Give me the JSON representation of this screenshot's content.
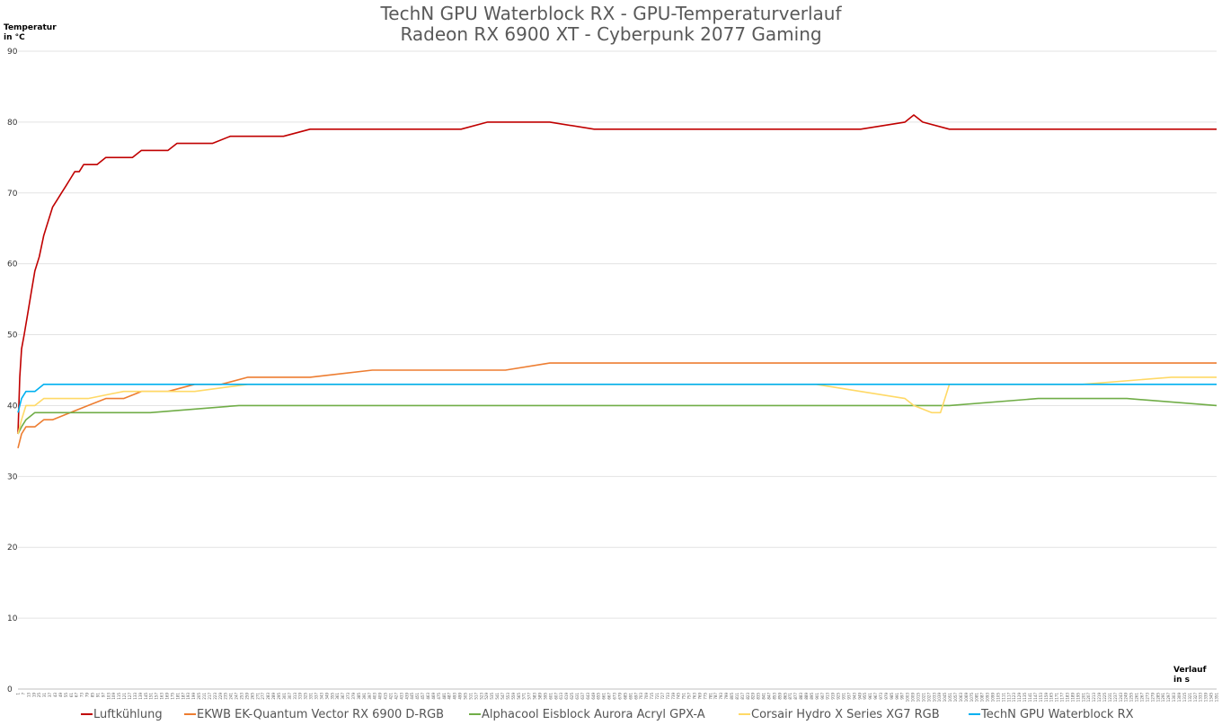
{
  "chart_data": {
    "type": "line",
    "title": [
      "TechN GPU Waterblock RX - GPU-Temperaturverlauf",
      "Radeon RX 6900 XT - Cyberpunk 2077 Gaming"
    ],
    "ylabel": [
      "Temperatur",
      "in °C"
    ],
    "xlabel": [
      "Verlauf",
      "in s"
    ],
    "ylim": [
      0,
      90
    ],
    "yticks": [
      0,
      10,
      20,
      30,
      40,
      50,
      60,
      70,
      80,
      90
    ],
    "xlim": [
      1,
      1351
    ],
    "x_tick_step": 6,
    "grid": true,
    "legend_position": "bottom",
    "series": [
      {
        "name": "Luftkühlung",
        "color": "#c00000",
        "x": [
          1,
          3,
          5,
          8,
          12,
          16,
          20,
          25,
          30,
          35,
          40,
          45,
          50,
          55,
          60,
          65,
          70,
          75,
          80,
          90,
          100,
          110,
          120,
          130,
          140,
          150,
          160,
          170,
          180,
          190,
          200,
          220,
          240,
          260,
          280,
          300,
          330,
          360,
          400,
          450,
          500,
          530,
          560,
          600,
          650,
          700,
          750,
          800,
          850,
          900,
          950,
          1000,
          1010,
          1020,
          1050,
          1100,
          1150,
          1200,
          1250,
          1300,
          1351
        ],
        "values": [
          36,
          44,
          48,
          50,
          53,
          56,
          59,
          61,
          64,
          66,
          68,
          69,
          70,
          71,
          72,
          73,
          73,
          74,
          74,
          74,
          75,
          75,
          75,
          75,
          76,
          76,
          76,
          76,
          77,
          77,
          77,
          77,
          78,
          78,
          78,
          78,
          79,
          79,
          79,
          79,
          79,
          80,
          80,
          80,
          79,
          79,
          79,
          79,
          79,
          79,
          79,
          80,
          81,
          80,
          79,
          79,
          79,
          79,
          79,
          79,
          79
        ]
      },
      {
        "name": "EKWB EK-Quantum Vector RX 6900 D-RGB",
        "color": "#ed7d31",
        "x": [
          1,
          5,
          10,
          20,
          30,
          40,
          60,
          80,
          100,
          120,
          140,
          170,
          200,
          230,
          260,
          300,
          330,
          400,
          450,
          500,
          550,
          600,
          700,
          800,
          900,
          1000,
          1100,
          1200,
          1300,
          1351
        ],
        "values": [
          34,
          36,
          37,
          37,
          38,
          38,
          39,
          40,
          41,
          41,
          42,
          42,
          43,
          43,
          44,
          44,
          44,
          45,
          45,
          45,
          45,
          46,
          46,
          46,
          46,
          46,
          46,
          46,
          46,
          46
        ]
      },
      {
        "name": "Alphacool Eisblock Aurora Acryl GPX-A",
        "color": "#70ad47",
        "x": [
          1,
          5,
          10,
          20,
          40,
          80,
          150,
          250,
          350,
          450,
          550,
          650,
          750,
          850,
          950,
          1050,
          1150,
          1250,
          1351
        ],
        "values": [
          36,
          37,
          38,
          39,
          39,
          39,
          39,
          40,
          40,
          40,
          40,
          40,
          40,
          40,
          40,
          40,
          41,
          41,
          40
        ]
      },
      {
        "name": "Corsair Hydro X Series XG7 RGB",
        "color": "#ffd966",
        "x": [
          1,
          5,
          10,
          20,
          30,
          50,
          80,
          120,
          160,
          200,
          260,
          320,
          400,
          500,
          600,
          700,
          800,
          900,
          1000,
          1010,
          1030,
          1040,
          1050,
          1100,
          1200,
          1300,
          1351
        ],
        "values": [
          36,
          38,
          40,
          40,
          41,
          41,
          41,
          42,
          42,
          42,
          43,
          43,
          43,
          43,
          43,
          43,
          43,
          43,
          41,
          40,
          39,
          39,
          43,
          43,
          43,
          44,
          44
        ]
      },
      {
        "name": "TechN GPU Waterblock RX",
        "color": "#00b0f0",
        "x": [
          1,
          5,
          10,
          20,
          30,
          50,
          100,
          200,
          300,
          400,
          500,
          600,
          700,
          800,
          900,
          1000,
          1100,
          1200,
          1300,
          1351
        ],
        "values": [
          39,
          41,
          42,
          42,
          43,
          43,
          43,
          43,
          43,
          43,
          43,
          43,
          43,
          43,
          43,
          43,
          43,
          43,
          43,
          43
        ]
      }
    ]
  }
}
